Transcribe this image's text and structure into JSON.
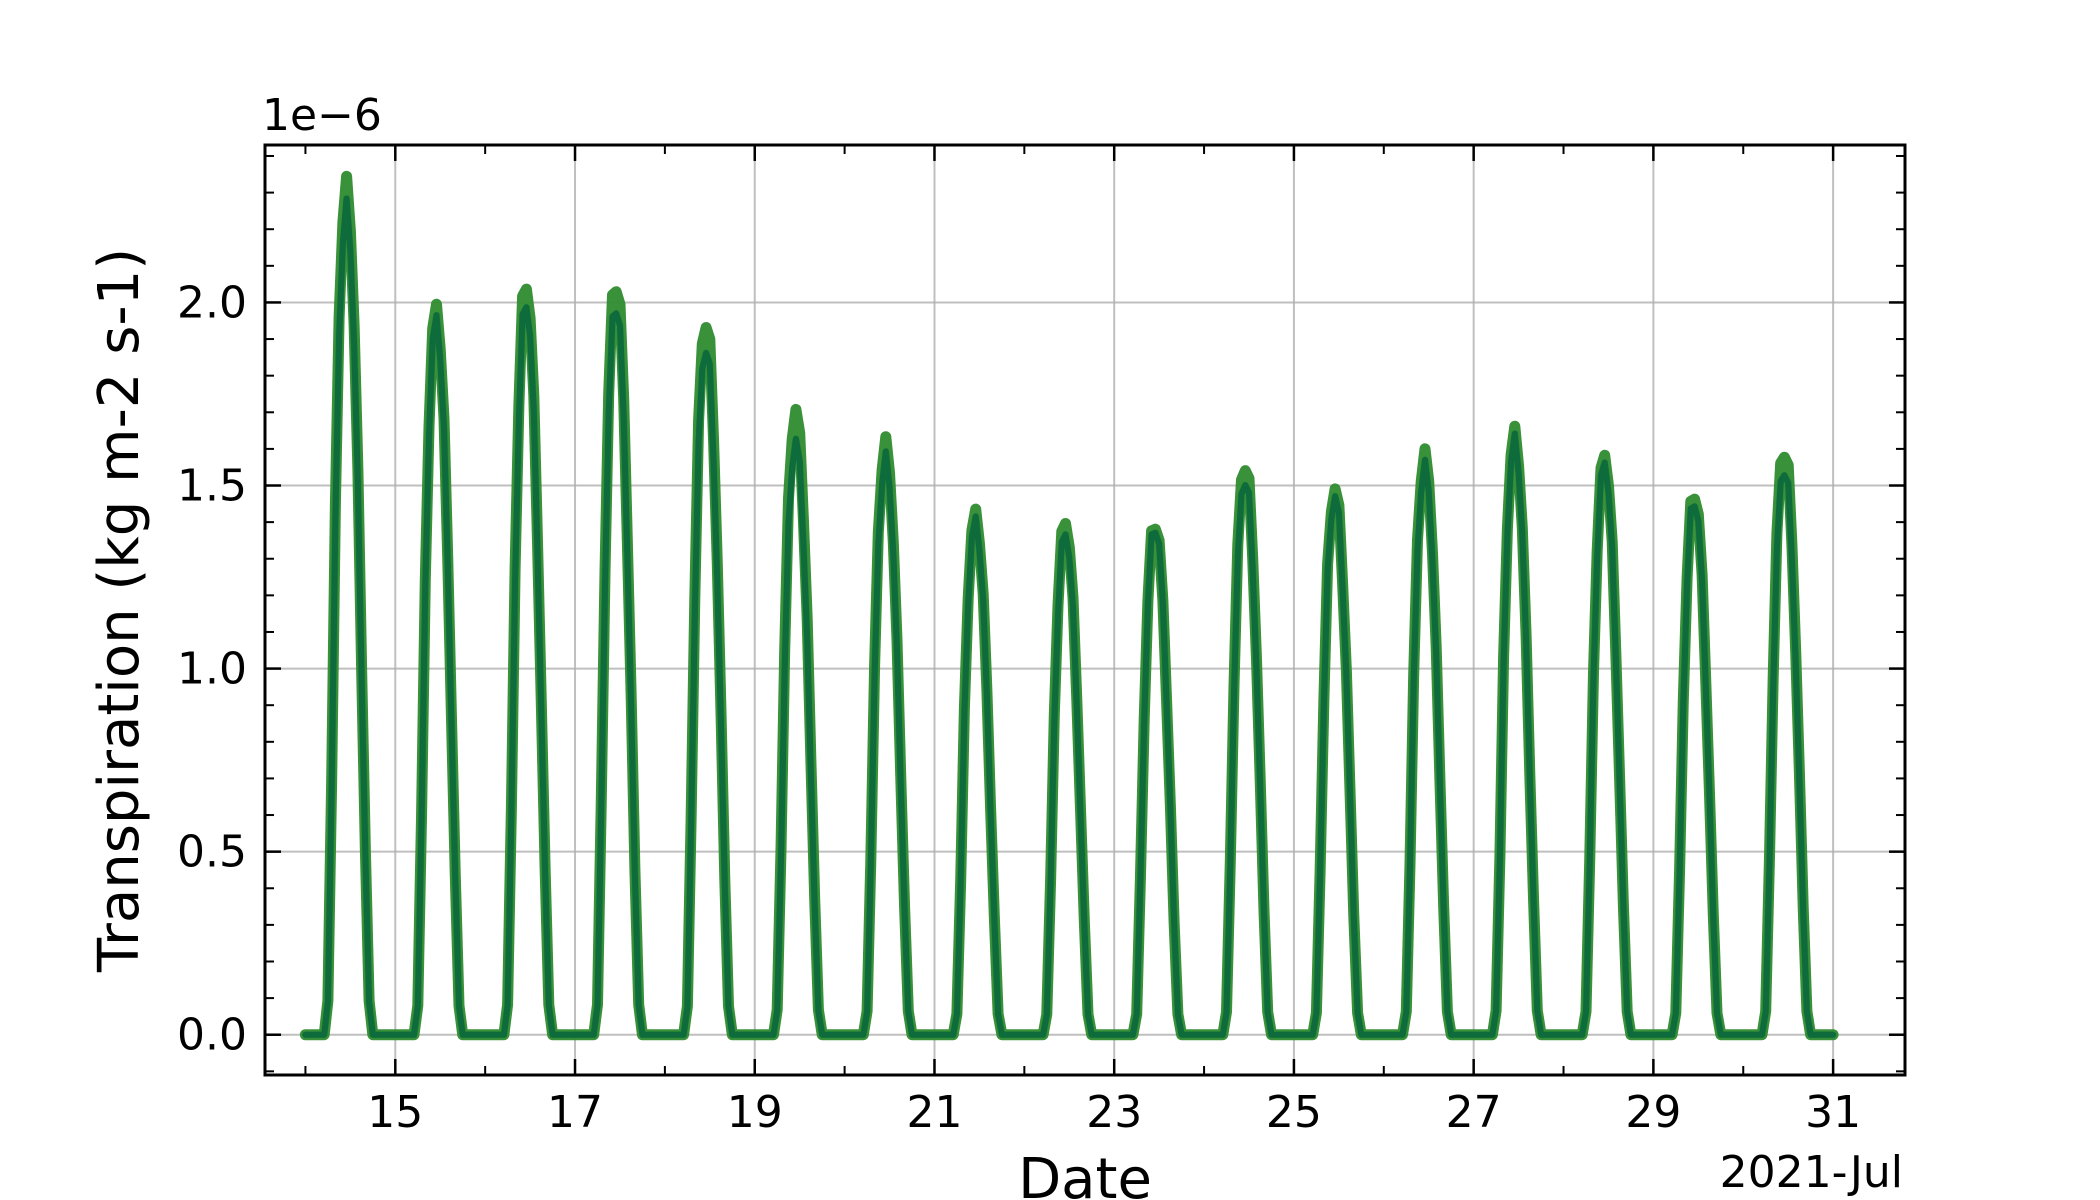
{
  "chart_data": {
    "type": "line",
    "xlabel": "Date",
    "ylabel": "Transpiration (kg m-2 s-1)",
    "y_offset_label": "1e−6",
    "x_offset_label": "2021-Jul",
    "xlim": [
      13.55,
      31.8
    ],
    "ylim": [
      -0.11,
      2.43
    ],
    "x_ticks": [
      15,
      17,
      19,
      21,
      23,
      25,
      27,
      29,
      31
    ],
    "x_tick_labels": [
      "15",
      "17",
      "19",
      "21",
      "23",
      "25",
      "27",
      "29",
      "31"
    ],
    "y_ticks": [
      0.0,
      0.5,
      1.0,
      1.5,
      2.0
    ],
    "y_tick_labels": [
      "0.0",
      "0.5",
      "1.0",
      "1.5",
      "2.0"
    ],
    "grid": true,
    "daily_peaks": [
      {
        "day": 14,
        "green": 2.31,
        "blue": 2.25
      },
      {
        "day": 15,
        "green": 1.98,
        "blue": 1.95
      },
      {
        "day": 16,
        "green": 2.05,
        "blue": 2.0
      },
      {
        "day": 17,
        "green": 2.06,
        "blue": 2.0
      },
      {
        "day": 18,
        "green": 1.95,
        "blue": 1.88
      },
      {
        "day": 19,
        "green": 1.7,
        "blue": 1.62
      },
      {
        "day": 20,
        "green": 1.61,
        "blue": 1.57
      },
      {
        "day": 21,
        "green": 1.42,
        "blue": 1.4
      },
      {
        "day": 22,
        "green": 1.4,
        "blue": 1.37
      },
      {
        "day": 23,
        "green": 1.4,
        "blue": 1.39
      },
      {
        "day": 24,
        "green": 1.56,
        "blue": 1.52
      },
      {
        "day": 25,
        "green": 1.49,
        "blue": 1.47
      },
      {
        "day": 26,
        "green": 1.58,
        "blue": 1.55
      },
      {
        "day": 27,
        "green": 1.64,
        "blue": 1.62
      },
      {
        "day": 28,
        "green": 1.58,
        "blue": 1.56
      },
      {
        "day": 29,
        "green": 1.48,
        "blue": 1.46
      },
      {
        "day": 30,
        "green": 1.6,
        "blue": 1.55
      }
    ],
    "series": [
      {
        "color": "#2a3fb3",
        "key": "blue"
      },
      {
        "color": "#2e8b2e",
        "key": "green"
      },
      {
        "color": "#0d6b3c",
        "key": "blue"
      }
    ]
  }
}
